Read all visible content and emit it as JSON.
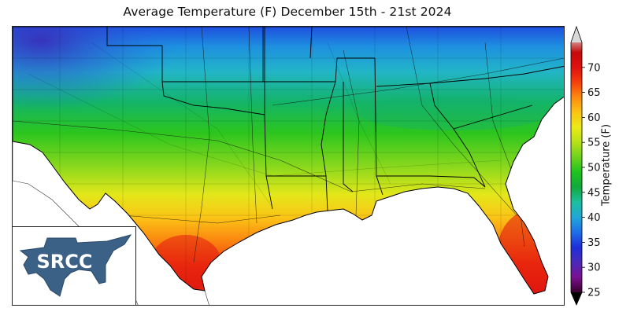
{
  "title": "Average Temperature (F) December 15th - 21st 2024",
  "logo": {
    "text": "SRCC"
  },
  "colorbar": {
    "label": "Temperature (F)",
    "min": 25,
    "max": 75,
    "ticks": [
      25,
      30,
      35,
      40,
      45,
      50,
      55,
      60,
      65,
      70
    ],
    "extend": "both",
    "colors": {
      "under": "#000000",
      "over": "#d9d9d9",
      "stops": [
        {
          "v": 25,
          "c": "#3a0030"
        },
        {
          "v": 28,
          "c": "#7a1090"
        },
        {
          "v": 31,
          "c": "#4a2ab8"
        },
        {
          "v": 34,
          "c": "#1e2ed8"
        },
        {
          "v": 37,
          "c": "#1f6ee8"
        },
        {
          "v": 40,
          "c": "#22a6d8"
        },
        {
          "v": 43,
          "c": "#1cbfa0"
        },
        {
          "v": 46,
          "c": "#12a93c"
        },
        {
          "v": 49,
          "c": "#1ec21e"
        },
        {
          "v": 52,
          "c": "#6ed21e"
        },
        {
          "v": 55,
          "c": "#b6e018"
        },
        {
          "v": 58,
          "c": "#eaea18"
        },
        {
          "v": 61,
          "c": "#fbc414"
        },
        {
          "v": 64,
          "c": "#fb8c10"
        },
        {
          "v": 67,
          "c": "#f5400c"
        },
        {
          "v": 70,
          "c": "#e01010"
        },
        {
          "v": 73,
          "c": "#c40a0a"
        },
        {
          "v": 75,
          "c": "#d28282"
        }
      ]
    }
  },
  "colors": {
    "logo_fill": "#3b6186",
    "land_outline": "#000000",
    "ocean": "#ffffff"
  }
}
